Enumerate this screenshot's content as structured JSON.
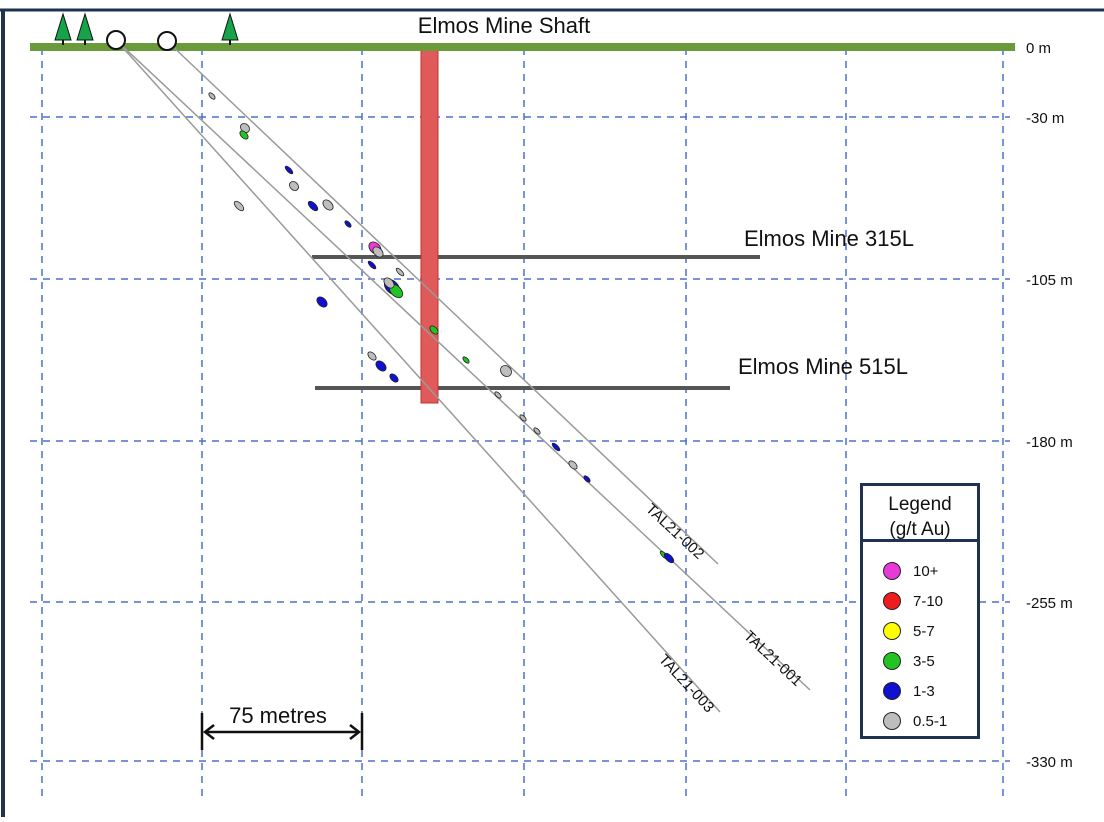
{
  "title": "Elmos Mine Shaft",
  "levels": {
    "l315": "Elmos Mine 315L",
    "l515": "Elmos Mine 515L"
  },
  "depth_labels": [
    "0 m",
    "-30 m",
    "-105 m",
    "-180 m",
    "-255 m",
    "-330 m"
  ],
  "holes": {
    "h001": "TAL21-001",
    "h002": "TAL21-002",
    "h003": "TAL21-003"
  },
  "scale_bar": "75 metres",
  "legend": {
    "title_line1": "Legend",
    "title_line2": "(g/t Au)",
    "items": [
      {
        "label": "10+",
        "color": "#e83ad6"
      },
      {
        "label": "7-10",
        "color": "#ee1c1c"
      },
      {
        "label": "5-7",
        "color": "#ffff00"
      },
      {
        "label": "3-5",
        "color": "#22c322"
      },
      {
        "label": "1-3",
        "color": "#1010d0"
      },
      {
        "label": "0.5-1",
        "color": "#bdbdbd"
      }
    ]
  },
  "colors": {
    "ground": "#6a9a3a",
    "shaft": "#e05a5a",
    "grid": "#4a72c8",
    "tree": "#17a34a",
    "frame": "#1f3250"
  }
}
